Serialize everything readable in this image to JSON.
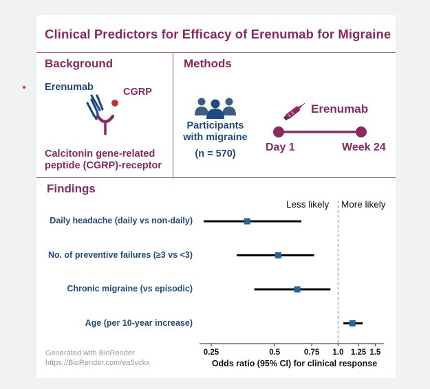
{
  "title": "Clinical Predictors for Efficacy of Erenumab for Migraine",
  "background": {
    "heading": "Background",
    "drug_label": "Erenumab",
    "ligand_label": "CGRP",
    "receptor_label_line1": "Calcitonin gene-related",
    "receptor_label_line2": "peptide (CGRP)-receptor"
  },
  "methods": {
    "heading": "Methods",
    "participants_line1": "Participants",
    "participants_line2": "with migraine",
    "n_label": "(n = 570)",
    "drug_label": "Erenumab",
    "start_label": "Day 1",
    "end_label": "Week 24"
  },
  "findings": {
    "heading": "Findings"
  },
  "footer": {
    "line1": "Generated with BioRender",
    "line2": "https://BioRender.com/ea5vckx"
  },
  "colors": {
    "accent": "#8a2a5f",
    "navy": "#1d4a80",
    "marker": "#2466a0",
    "divider": "#b05a8c"
  },
  "chart_data": {
    "type": "forest",
    "x_scale": "log",
    "xlim": [
      0.22,
      1.65
    ],
    "xticks": [
      0.25,
      0.5,
      0.75,
      1.0,
      1.25,
      1.5
    ],
    "xtick_labels": [
      "0.25",
      "0.5",
      "0.75",
      "1.0",
      "1.25",
      "1.5"
    ],
    "xlabel": "Odds ratio (95% CI) for clinical response",
    "reference_line": 1.0,
    "annotation_left": "Less likely",
    "annotation_right": "More likely",
    "rows": [
      {
        "label": "Daily headache (daily vs non-daily)",
        "or": 0.37,
        "lo": 0.23,
        "hi": 0.67
      },
      {
        "label": "No. of preventive failures (≥3 vs <3)",
        "or": 0.52,
        "lo": 0.33,
        "hi": 0.77
      },
      {
        "label": "Chronic migraine (vs episodic)",
        "or": 0.64,
        "lo": 0.4,
        "hi": 0.92
      },
      {
        "label": "Age (per 10-year increase)",
        "or": 1.17,
        "lo": 1.06,
        "hi": 1.31
      }
    ]
  }
}
